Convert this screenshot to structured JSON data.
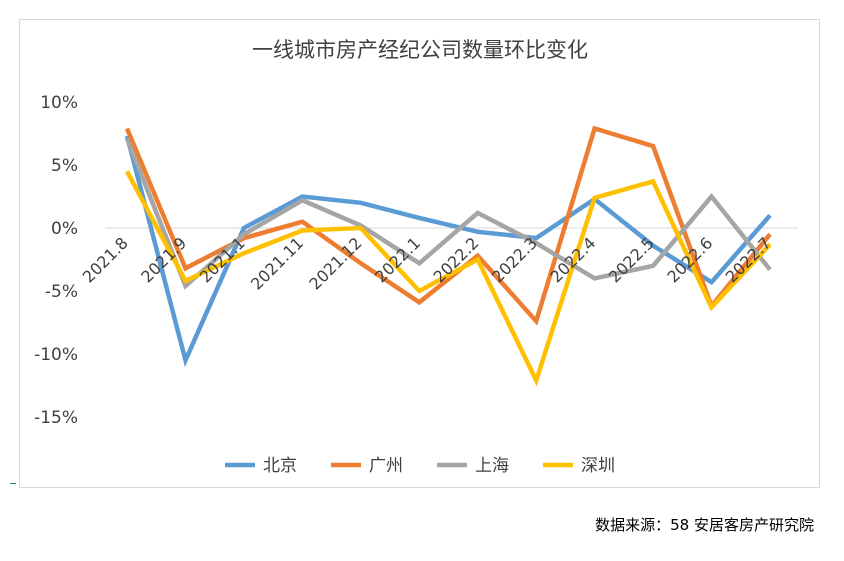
{
  "chart_data": {
    "type": "line",
    "title": "一线城市房产经纪公司数量环比变化",
    "xlabel": "",
    "ylabel": "",
    "categories": [
      "2021.8",
      "2021.9",
      "2021.1",
      "2021.11",
      "2021.12",
      "2022.1",
      "2022.2",
      "2022.3",
      "2022.4",
      "2022.5",
      "2022.6",
      "2022.7"
    ],
    "y_ticks": [
      "10%",
      "5%",
      "0%",
      "-5%",
      "-10%",
      "-15%"
    ],
    "ylim": [
      -20,
      10
    ],
    "unit": "%",
    "grid": "zero line only",
    "legend_position": "bottom",
    "series": [
      {
        "name": "北京",
        "color": "#5b9bd5",
        "values": [
          7.3,
          -10.5,
          0.0,
          2.5,
          2.0,
          0.8,
          -0.3,
          -0.8,
          2.3,
          -1.4,
          -4.3,
          1.0
        ]
      },
      {
        "name": "广州",
        "color": "#ed7d31",
        "values": [
          7.9,
          -3.2,
          -0.8,
          0.5,
          -2.8,
          -5.9,
          -2.2,
          -7.4,
          7.9,
          6.5,
          -6.2,
          -0.5
        ]
      },
      {
        "name": "上海",
        "color": "#a5a5a5",
        "values": [
          7.1,
          -4.6,
          -0.5,
          2.2,
          0.2,
          -2.8,
          1.2,
          -1.2,
          -4.0,
          -3.0,
          2.5,
          -3.3
        ]
      },
      {
        "name": "深圳",
        "color": "#ffc000",
        "values": [
          4.5,
          -4.2,
          -2.0,
          -0.2,
          0.0,
          -5.0,
          -2.5,
          -12.1,
          2.4,
          3.7,
          -6.3,
          -1.3
        ]
      }
    ]
  },
  "footer": {
    "source": "数据来源：58 安居客房产研究院"
  }
}
